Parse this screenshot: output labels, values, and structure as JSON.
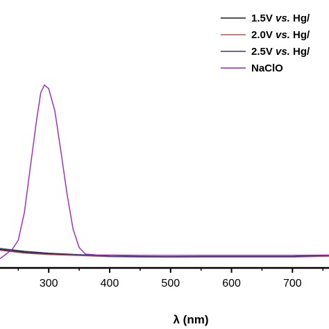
{
  "chart_data": {
    "type": "line",
    "title": "",
    "xlabel": "λ (nm)",
    "ylabel": "",
    "xlim": [
      220,
      760
    ],
    "x_ticks": [
      300,
      400,
      500,
      600,
      700
    ],
    "x_tick_labels": [
      "300",
      "400",
      "500",
      "600",
      "700"
    ],
    "ylim": [
      -0.05,
      1.4
    ],
    "grid": false,
    "legend_position": "top-right",
    "series": [
      {
        "name": "1.5V vs. Hg/",
        "name_parts": [
          "1.5V ",
          "vs.",
          " Hg/"
        ],
        "color": "#1a1a1a",
        "points": [
          [
            220,
            0.05
          ],
          [
            260,
            0.035
          ],
          [
            300,
            0.025
          ],
          [
            350,
            0.02
          ],
          [
            400,
            0.012
          ],
          [
            450,
            0.01
          ],
          [
            500,
            0.01
          ],
          [
            550,
            0.01
          ],
          [
            600,
            0.01
          ],
          [
            650,
            0.01
          ],
          [
            700,
            0.01
          ],
          [
            760,
            0.015
          ]
        ]
      },
      {
        "name": "2.0V vs. Hg/",
        "name_parts": [
          "2.0V ",
          "vs.",
          " Hg/"
        ],
        "color": "#c0504d",
        "points": [
          [
            220,
            0.045
          ],
          [
            260,
            0.03
          ],
          [
            300,
            0.022
          ],
          [
            350,
            0.017
          ],
          [
            400,
            0.011
          ],
          [
            450,
            0.009
          ],
          [
            500,
            0.008
          ],
          [
            550,
            0.009
          ],
          [
            600,
            0.009
          ],
          [
            650,
            0.009
          ],
          [
            700,
            0.009
          ],
          [
            760,
            0.013
          ]
        ]
      },
      {
        "name": "2.5V vs. Hg/",
        "name_parts": [
          "2.5V ",
          "vs.",
          " Hg/"
        ],
        "color": "#2e3a87",
        "points": [
          [
            220,
            0.055
          ],
          [
            260,
            0.04
          ],
          [
            300,
            0.03
          ],
          [
            350,
            0.022
          ],
          [
            400,
            0.014
          ],
          [
            450,
            0.012
          ],
          [
            500,
            0.011
          ],
          [
            550,
            0.012
          ],
          [
            600,
            0.012
          ],
          [
            650,
            0.012
          ],
          [
            700,
            0.012
          ],
          [
            760,
            0.018
          ]
        ]
      },
      {
        "name": "NaClO",
        "name_parts": [
          "NaClO"
        ],
        "color": "#a020c0",
        "points": [
          [
            220,
            0.0
          ],
          [
            240,
            0.05
          ],
          [
            250,
            0.1
          ],
          [
            260,
            0.25
          ],
          [
            270,
            0.5
          ],
          [
            280,
            0.75
          ],
          [
            287,
            0.9
          ],
          [
            293,
            0.94
          ],
          [
            300,
            0.92
          ],
          [
            310,
            0.8
          ],
          [
            320,
            0.58
          ],
          [
            330,
            0.35
          ],
          [
            340,
            0.16
          ],
          [
            350,
            0.06
          ],
          [
            360,
            0.025
          ],
          [
            380,
            0.02
          ],
          [
            400,
            0.02
          ],
          [
            450,
            0.018
          ],
          [
            500,
            0.018
          ],
          [
            550,
            0.018
          ],
          [
            600,
            0.018
          ],
          [
            650,
            0.018
          ],
          [
            700,
            0.018
          ],
          [
            760,
            0.02
          ]
        ]
      }
    ]
  }
}
